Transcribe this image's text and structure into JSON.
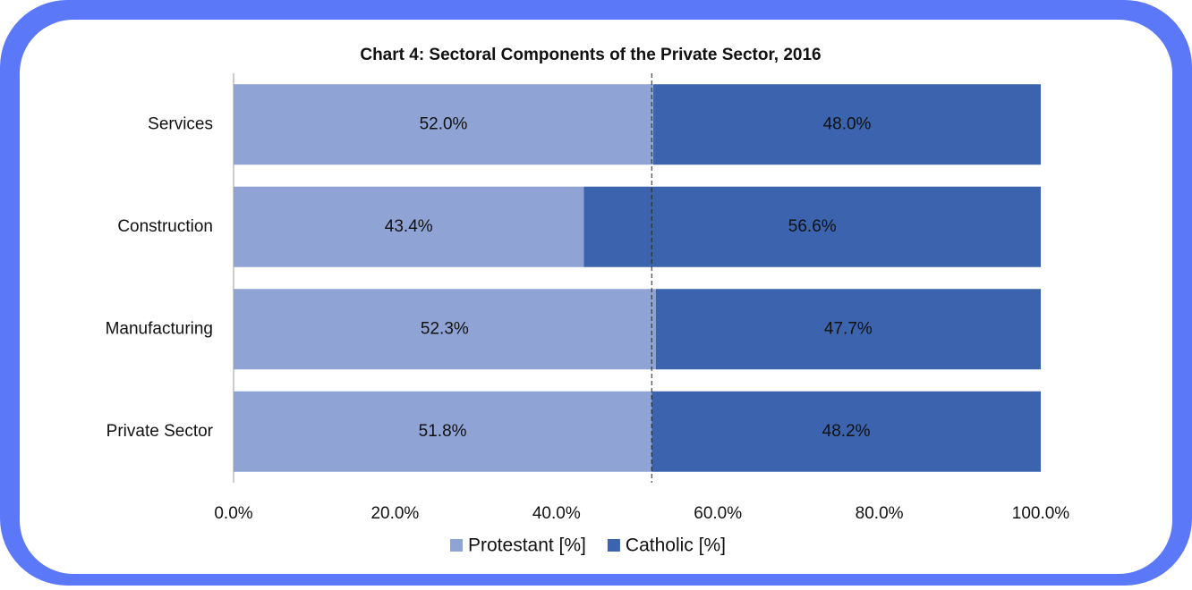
{
  "chart_data": {
    "type": "stacked_barh",
    "title": "Chart 4: Sectoral Components of the Private Sector, 2016",
    "categories": [
      "Services",
      "Construction",
      "Manufacturing",
      "Private Sector"
    ],
    "series": [
      {
        "name": "Protestant [%]",
        "color": "#8fa3d5",
        "values": [
          52.0,
          43.4,
          52.3,
          51.8
        ],
        "value_labels": [
          "52.0%",
          "43.4%",
          "52.3%",
          "51.8%"
        ]
      },
      {
        "name": "Catholic [%]",
        "color": "#3b63ae",
        "values": [
          48.0,
          56.6,
          47.7,
          48.2
        ],
        "value_labels": [
          "48.0%",
          "56.6%",
          "47.7%",
          "48.2%"
        ]
      }
    ],
    "xlim": [
      0,
      100
    ],
    "xticks": [
      {
        "value": 0,
        "label": "0.0%"
      },
      {
        "value": 20,
        "label": "20.0%"
      },
      {
        "value": 40,
        "label": "40.0%"
      },
      {
        "value": 60,
        "label": "60.0%"
      },
      {
        "value": 80,
        "label": "80.0%"
      },
      {
        "value": 100,
        "label": "100.0%"
      }
    ],
    "reference_line": 51.8,
    "legend": "bottom"
  }
}
